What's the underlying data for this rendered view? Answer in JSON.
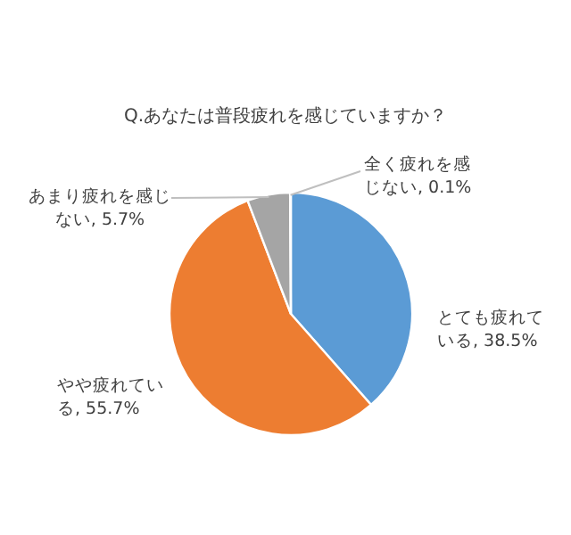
{
  "chart_data": {
    "type": "pie",
    "title": "Q.あなたは普段疲れを感じていますか？",
    "categories": [
      "とても疲れている",
      "やや疲れている",
      "あまり疲れを感じない",
      "全く疲れを感じない"
    ],
    "values": [
      38.5,
      55.7,
      5.7,
      0.1
    ],
    "value_labels": [
      "38.5%",
      "55.7%",
      "5.7%",
      "0.1%"
    ],
    "colors": [
      "#5b9bd5",
      "#ed7d31",
      "#a5a5a5",
      "#ffc000"
    ],
    "legend": false
  }
}
